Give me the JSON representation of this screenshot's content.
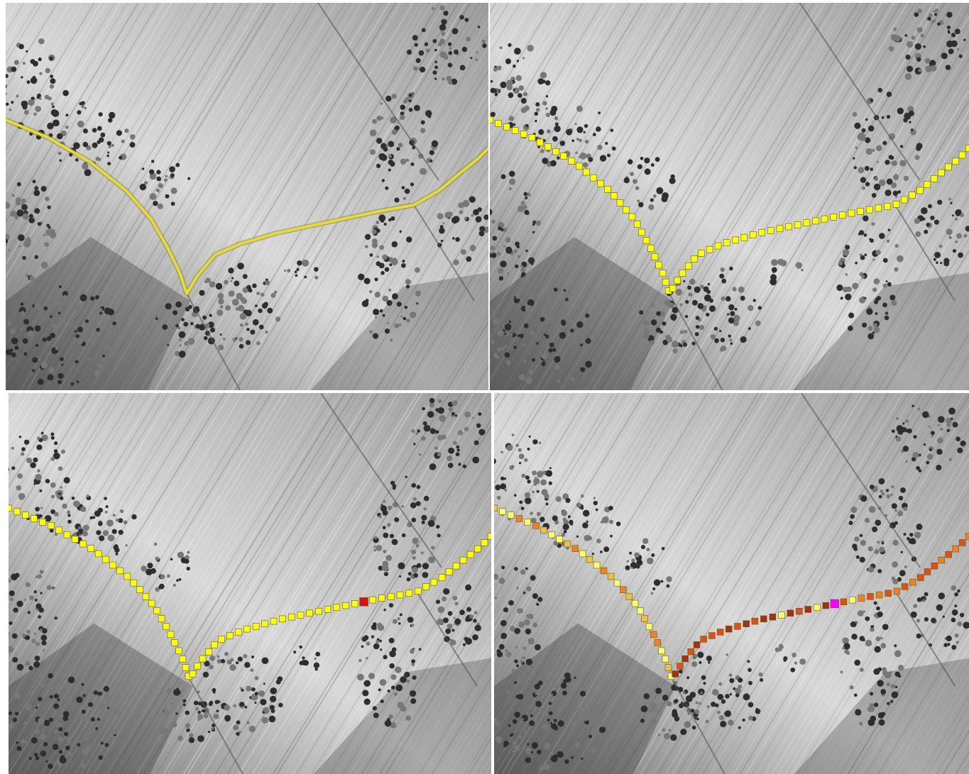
{
  "panels": [
    {
      "id": "p1",
      "label": "continuous-line",
      "mode": "line",
      "line_color": "#e8d93a"
    },
    {
      "id": "p2",
      "label": "sampled-points",
      "mode": "points",
      "point_color": "#ffff00"
    },
    {
      "id": "p3",
      "label": "sampled-points-single-anomaly",
      "mode": "points",
      "point_color": "#ffff00",
      "highlight_fraction": 0.75,
      "highlight_color": "#e01010"
    },
    {
      "id": "p4",
      "label": "sampled-points-colored-by-value",
      "mode": "graded",
      "highlight_fraction": 0.74,
      "highlight_color": "#ff00ff",
      "palette": [
        "#ffff66",
        "#f0c040",
        "#f08020",
        "#e05010",
        "#a83010"
      ]
    }
  ],
  "colors": {
    "terrain_base": "#9d9d9d",
    "terrain_light": "#d8d8d8",
    "terrain_dark": "#2e2e2e",
    "track_yellow": "#ffff00",
    "anomaly_red": "#e01010",
    "anomaly_magenta": "#ff00ff"
  }
}
